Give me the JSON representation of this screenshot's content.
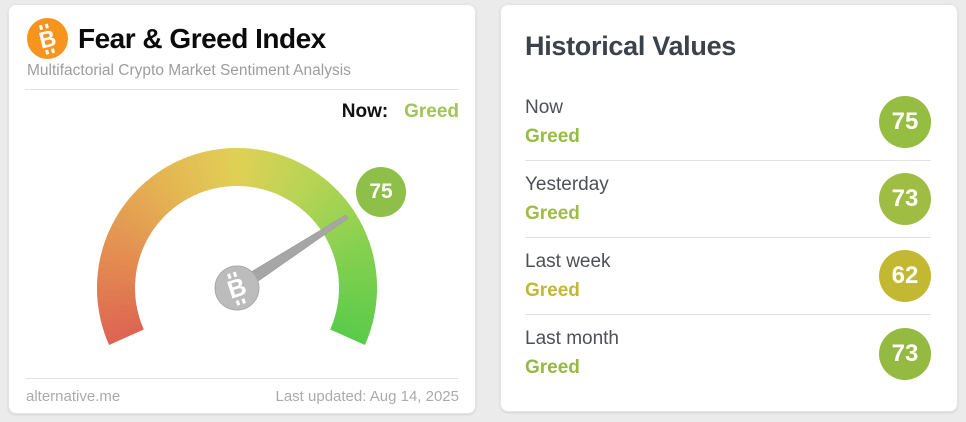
{
  "left_card": {
    "title": "Fear & Greed Index",
    "subtitle": "Multifactorial Crypto Market Sentiment Analysis",
    "now_label": "Now:",
    "now_sentiment": "Greed",
    "footer_site": "alternative.me",
    "footer_updated": "Last updated: Aug 14, 2025"
  },
  "chart_data": {
    "type": "gauge",
    "title": "Fear & Greed Index",
    "min": 0,
    "max": 100,
    "value": 75,
    "classification": "Greed",
    "start_angle_deg": 204,
    "sweep_deg": 228,
    "gradient_stops": [
      [
        0,
        "#dd6451"
      ],
      [
        0.17,
        "#e38d51"
      ],
      [
        0.35,
        "#e4b553"
      ],
      [
        0.5,
        "#e0d055"
      ],
      [
        0.65,
        "#b8d455"
      ],
      [
        0.82,
        "#85d04f"
      ],
      [
        1,
        "#5acb4a"
      ]
    ],
    "needle_color": "#a6a6a6",
    "hub_color": "#bcbcbc",
    "badge_color": "#8ebf48"
  },
  "right_card": {
    "title": "Historical Values",
    "rows": [
      {
        "label": "Now",
        "sentiment": "Greed",
        "value": "75",
        "color": "#95bd41"
      },
      {
        "label": "Yesterday",
        "sentiment": "Greed",
        "value": "73",
        "color": "#9fbc43"
      },
      {
        "label": "Last week",
        "sentiment": "Greed",
        "value": "62",
        "color": "#c2b832"
      },
      {
        "label": "Last month",
        "sentiment": "Greed",
        "value": "73",
        "color": "#95ba41"
      }
    ]
  },
  "icons": {
    "bitcoin_glyph": "B",
    "bitcoin_orange": "#f7941d"
  },
  "colors": {
    "now_sentiment_green": "#9fc653",
    "background": "#ebebeb"
  }
}
